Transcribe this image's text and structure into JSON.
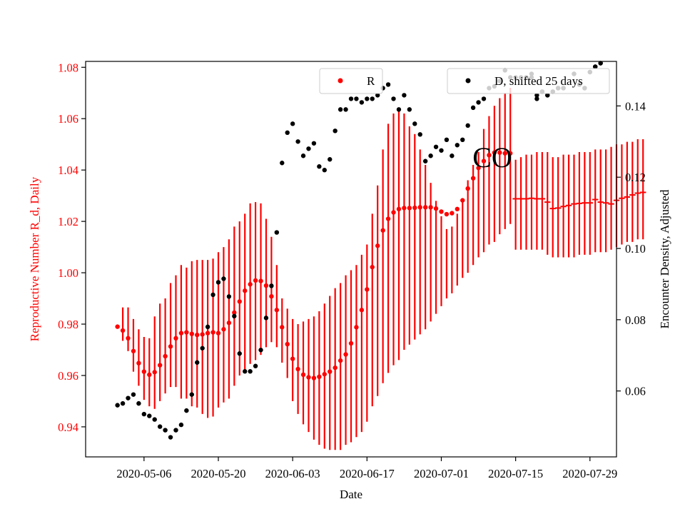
{
  "chart_data": {
    "type": "scatter",
    "xlabel": "Date",
    "ylabel_left": "Reproductive Number R_d, Daily",
    "ylabel_right": "Encounter Density, Adjusted",
    "annotation": "CO",
    "x_ticks": [
      "2020-05-06",
      "2020-05-20",
      "2020-06-03",
      "2020-06-17",
      "2020-07-01",
      "2020-07-15",
      "2020-07-29"
    ],
    "y_ticks_left": [
      "0.94",
      "0.96",
      "0.98",
      "1.00",
      "1.02",
      "1.04",
      "1.06",
      "1.08"
    ],
    "y_ticks_right": [
      "0.06",
      "0.08",
      "0.10",
      "0.12",
      "0.14"
    ],
    "xlim": [
      "2020-04-25",
      "2020-08-03"
    ],
    "ylim_left": [
      0.9283,
      1.0823
    ],
    "ylim_right": [
      0.0415,
      0.1525
    ],
    "grid": false,
    "legend_left": {
      "label": "R",
      "placement": "top-center"
    },
    "legend_right": {
      "label": "D, shifted 25 days",
      "placement": "top-right"
    },
    "colors": {
      "R": "#ff0000",
      "D": "#000000",
      "axis_left": "#ff0000",
      "axis_right": "#000000"
    },
    "R": {
      "start_date": "2020-05-01",
      "y": [
        0.979,
        0.9775,
        0.9745,
        0.9695,
        0.9648,
        0.9615,
        0.9603,
        0.9613,
        0.964,
        0.9675,
        0.9713,
        0.9745,
        0.9765,
        0.9768,
        0.9762,
        0.9758,
        0.976,
        0.9765,
        0.9768,
        0.9765,
        0.978,
        0.9805,
        0.9845,
        0.9888,
        0.993,
        0.9955,
        0.997,
        0.9968,
        0.995,
        0.9908,
        0.9855,
        0.9788,
        0.9722,
        0.9665,
        0.9625,
        0.9603,
        0.9593,
        0.959,
        0.9595,
        0.9605,
        0.9615,
        0.963,
        0.9658,
        0.9682,
        0.9725,
        0.9788,
        0.9855,
        0.9935,
        1.0022,
        1.0105,
        1.0165,
        1.021,
        1.0235,
        1.0248,
        1.0252,
        1.0252,
        1.0253,
        1.0255,
        1.0255,
        1.0255,
        1.025,
        1.0238,
        1.0228,
        1.0232,
        1.0248,
        1.0282,
        1.0328,
        1.0368,
        1.0408,
        1.0435,
        1.0458,
        1.0468,
        1.0468,
        1.0465,
        1.0465
      ],
      "lower": [
        0.979,
        0.9735,
        0.9695,
        0.9615,
        0.956,
        0.9505,
        0.948,
        0.947,
        0.95,
        0.953,
        0.9555,
        0.9555,
        0.951,
        0.951,
        0.948,
        0.9475,
        0.945,
        0.9435,
        0.944,
        0.9475,
        0.9495,
        0.951,
        0.956,
        0.96,
        0.962,
        0.9645,
        0.966,
        0.968,
        0.971,
        0.973,
        0.971,
        0.965,
        0.959,
        0.95,
        0.945,
        0.941,
        0.938,
        0.935,
        0.933,
        0.9315,
        0.931,
        0.931,
        0.931,
        0.933,
        0.934,
        0.936,
        0.938,
        0.942,
        0.948,
        0.952,
        0.957,
        0.961,
        0.964,
        0.966,
        0.97,
        0.972,
        0.974,
        0.976,
        0.978,
        0.981,
        0.984,
        0.987,
        0.99,
        0.992,
        0.995,
        0.998,
        1.0,
        1.003,
        1.006,
        1.008,
        1.011,
        1.012,
        1.015,
        1.017,
        1.019
      ],
      "upper": [
        0.979,
        0.9865,
        0.9865,
        0.982,
        0.978,
        0.975,
        0.9745,
        0.983,
        0.988,
        0.99,
        0.996,
        0.999,
        1.003,
        1.002,
        1.0045,
        1.005,
        1.005,
        1.005,
        1.0055,
        1.008,
        1.01,
        1.013,
        1.018,
        1.02,
        1.023,
        1.027,
        1.0275,
        1.027,
        1.021,
        1.014,
        1.003,
        0.99,
        0.986,
        0.982,
        0.98,
        0.981,
        0.982,
        0.983,
        0.985,
        0.988,
        0.991,
        0.994,
        0.996,
        0.999,
        1.001,
        1.003,
        1.007,
        1.011,
        1.023,
        1.034,
        1.048,
        1.058,
        1.062,
        1.063,
        1.062,
        1.057,
        1.054,
        1.048,
        1.042,
        1.035,
        1.028,
        1.022,
        1.017,
        1.018,
        1.023,
        1.028,
        1.036,
        1.042,
        1.047,
        1.056,
        1.061,
        1.065,
        1.068,
        1.07,
        1.072
      ],
      "tail_start_date": "2020-07-15",
      "tail_center": [
        1.0288,
        1.0288,
        1.0288,
        1.029,
        1.0288,
        1.0288,
        1.0275,
        1.025,
        1.0252,
        1.0258,
        1.0262,
        1.0268,
        1.027,
        1.0272,
        1.0272,
        1.0285,
        1.0275,
        1.0272,
        1.0268,
        1.0282,
        1.029,
        1.0295,
        1.0303,
        1.031,
        1.0313
      ],
      "tail_lower": [
        1.009,
        1.009,
        1.009,
        1.009,
        1.009,
        1.009,
        1.007,
        1.006,
        1.006,
        1.006,
        1.006,
        1.006,
        1.007,
        1.007,
        1.007,
        1.008,
        1.008,
        1.008,
        1.009,
        1.01,
        1.011,
        1.012,
        1.012,
        1.013,
        1.013
      ],
      "tail_upper": [
        1.044,
        1.045,
        1.046,
        1.046,
        1.047,
        1.047,
        1.047,
        1.045,
        1.045,
        1.046,
        1.046,
        1.046,
        1.047,
        1.047,
        1.047,
        1.048,
        1.048,
        1.048,
        1.049,
        1.05,
        1.05,
        1.051,
        1.051,
        1.052,
        1.052
      ]
    },
    "D": {
      "start_date": "2020-05-01",
      "y": [
        0.056,
        0.0565,
        0.058,
        0.059,
        0.0565,
        0.0535,
        0.053,
        0.052,
        0.05,
        0.049,
        0.047,
        0.049,
        0.0505,
        0.0545,
        0.059,
        0.068,
        0.072,
        0.078,
        0.087,
        0.0905,
        0.0915,
        0.0865,
        0.081,
        0.0705,
        0.0655,
        0.0655,
        0.067,
        0.0715,
        0.0805,
        0.0895,
        0.1045,
        0.124,
        0.1325,
        0.135,
        0.13,
        0.126,
        0.128,
        0.1295,
        0.123,
        0.122,
        0.125,
        0.133,
        0.139,
        0.139,
        0.142,
        0.142,
        0.141,
        0.142,
        0.142,
        0.143,
        0.145,
        0.146,
        0.142,
        0.139,
        0.143,
        0.139,
        0.135,
        0.132,
        0.1245,
        0.126,
        0.1285,
        0.1275,
        0.1305,
        0.126,
        0.129,
        0.1305,
        0.1345,
        0.1395,
        0.141,
        0.142,
        0.145,
        0.1455,
        0.147,
        0.15,
        0.148,
        0.148,
        0.148,
        0.148,
        0.149,
        0.143,
        0.144,
        0.143,
        0.144,
        0.145,
        0.145,
        null,
        0.149,
        0.146,
        0.145,
        0.1495,
        0.151,
        0.152
      ],
      "tail_start_date": "2020-07-17",
      "tail_y": [
        0.148,
        0.148,
        0.142,
        0.144,
        0.143,
        0.144,
        0.145,
        0.145,
        null,
        0.149,
        0.146,
        0.145,
        0.1495,
        0.151,
        0.152
      ]
    }
  }
}
